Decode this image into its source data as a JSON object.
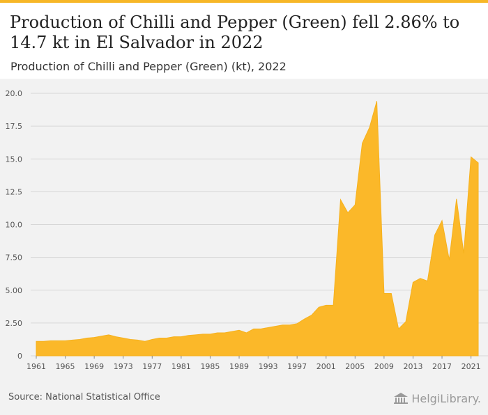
{
  "header": {
    "title": "Production of Chilli and Pepper (Green) fell 2.86% to 14.7 kt in El Salvador in 2022",
    "subtitle": "Production of Chilli and Pepper (Green) (kt), 2022"
  },
  "footer": {
    "source": "Source: National Statistical Office",
    "brand": "HelgiLibrary."
  },
  "colors": {
    "accent": "#f7b727",
    "area_fill": "#fbb829",
    "grid": "#d7d7d7",
    "plot_background": "#f2f2f2"
  },
  "chart_data": {
    "type": "area",
    "title": "Production of Chilli and Pepper (Green) fell 2.86% to 14.7 kt in El Salvador in 2022",
    "subtitle": "Production of Chilli and Pepper (Green) (kt), 2022",
    "xlabel": "",
    "ylabel": "",
    "grid": true,
    "ylim": [
      0,
      20
    ],
    "yticks": [
      0,
      2.5,
      5,
      7.5,
      10,
      12.5,
      15,
      17.5,
      20
    ],
    "ytick_labels": [
      "0",
      "2.50",
      "5.00",
      "7.50",
      "10.0",
      "12.5",
      "15.0",
      "17.5",
      "20.0"
    ],
    "xticks": [
      1961,
      1965,
      1969,
      1973,
      1977,
      1981,
      1985,
      1989,
      1993,
      1997,
      2001,
      2005,
      2009,
      2013,
      2017,
      2021
    ],
    "x": [
      1961,
      1962,
      1963,
      1964,
      1965,
      1966,
      1967,
      1968,
      1969,
      1970,
      1971,
      1972,
      1973,
      1974,
      1975,
      1976,
      1977,
      1978,
      1979,
      1980,
      1981,
      1982,
      1983,
      1984,
      1985,
      1986,
      1987,
      1988,
      1989,
      1990,
      1991,
      1992,
      1993,
      1994,
      1995,
      1996,
      1997,
      1998,
      1999,
      2000,
      2001,
      2002,
      2003,
      2004,
      2005,
      2006,
      2007,
      2008,
      2009,
      2010,
      2011,
      2012,
      2013,
      2014,
      2015,
      2016,
      2017,
      2018,
      2019,
      2020,
      2021,
      2022
    ],
    "values": [
      1.1,
      1.1,
      1.15,
      1.15,
      1.15,
      1.2,
      1.25,
      1.35,
      1.4,
      1.5,
      1.6,
      1.45,
      1.35,
      1.25,
      1.2,
      1.1,
      1.25,
      1.35,
      1.35,
      1.45,
      1.45,
      1.55,
      1.6,
      1.65,
      1.65,
      1.75,
      1.75,
      1.85,
      1.95,
      1.75,
      2.05,
      2.05,
      2.15,
      2.25,
      2.35,
      2.35,
      2.45,
      2.8,
      3.1,
      3.7,
      3.85,
      3.85,
      11.9,
      10.9,
      11.5,
      16.2,
      17.4,
      19.4,
      4.75,
      4.75,
      2.05,
      2.6,
      5.6,
      5.9,
      5.7,
      9.2,
      10.3,
      7.3,
      11.95,
      7.8,
      15.15,
      14.7
    ]
  }
}
